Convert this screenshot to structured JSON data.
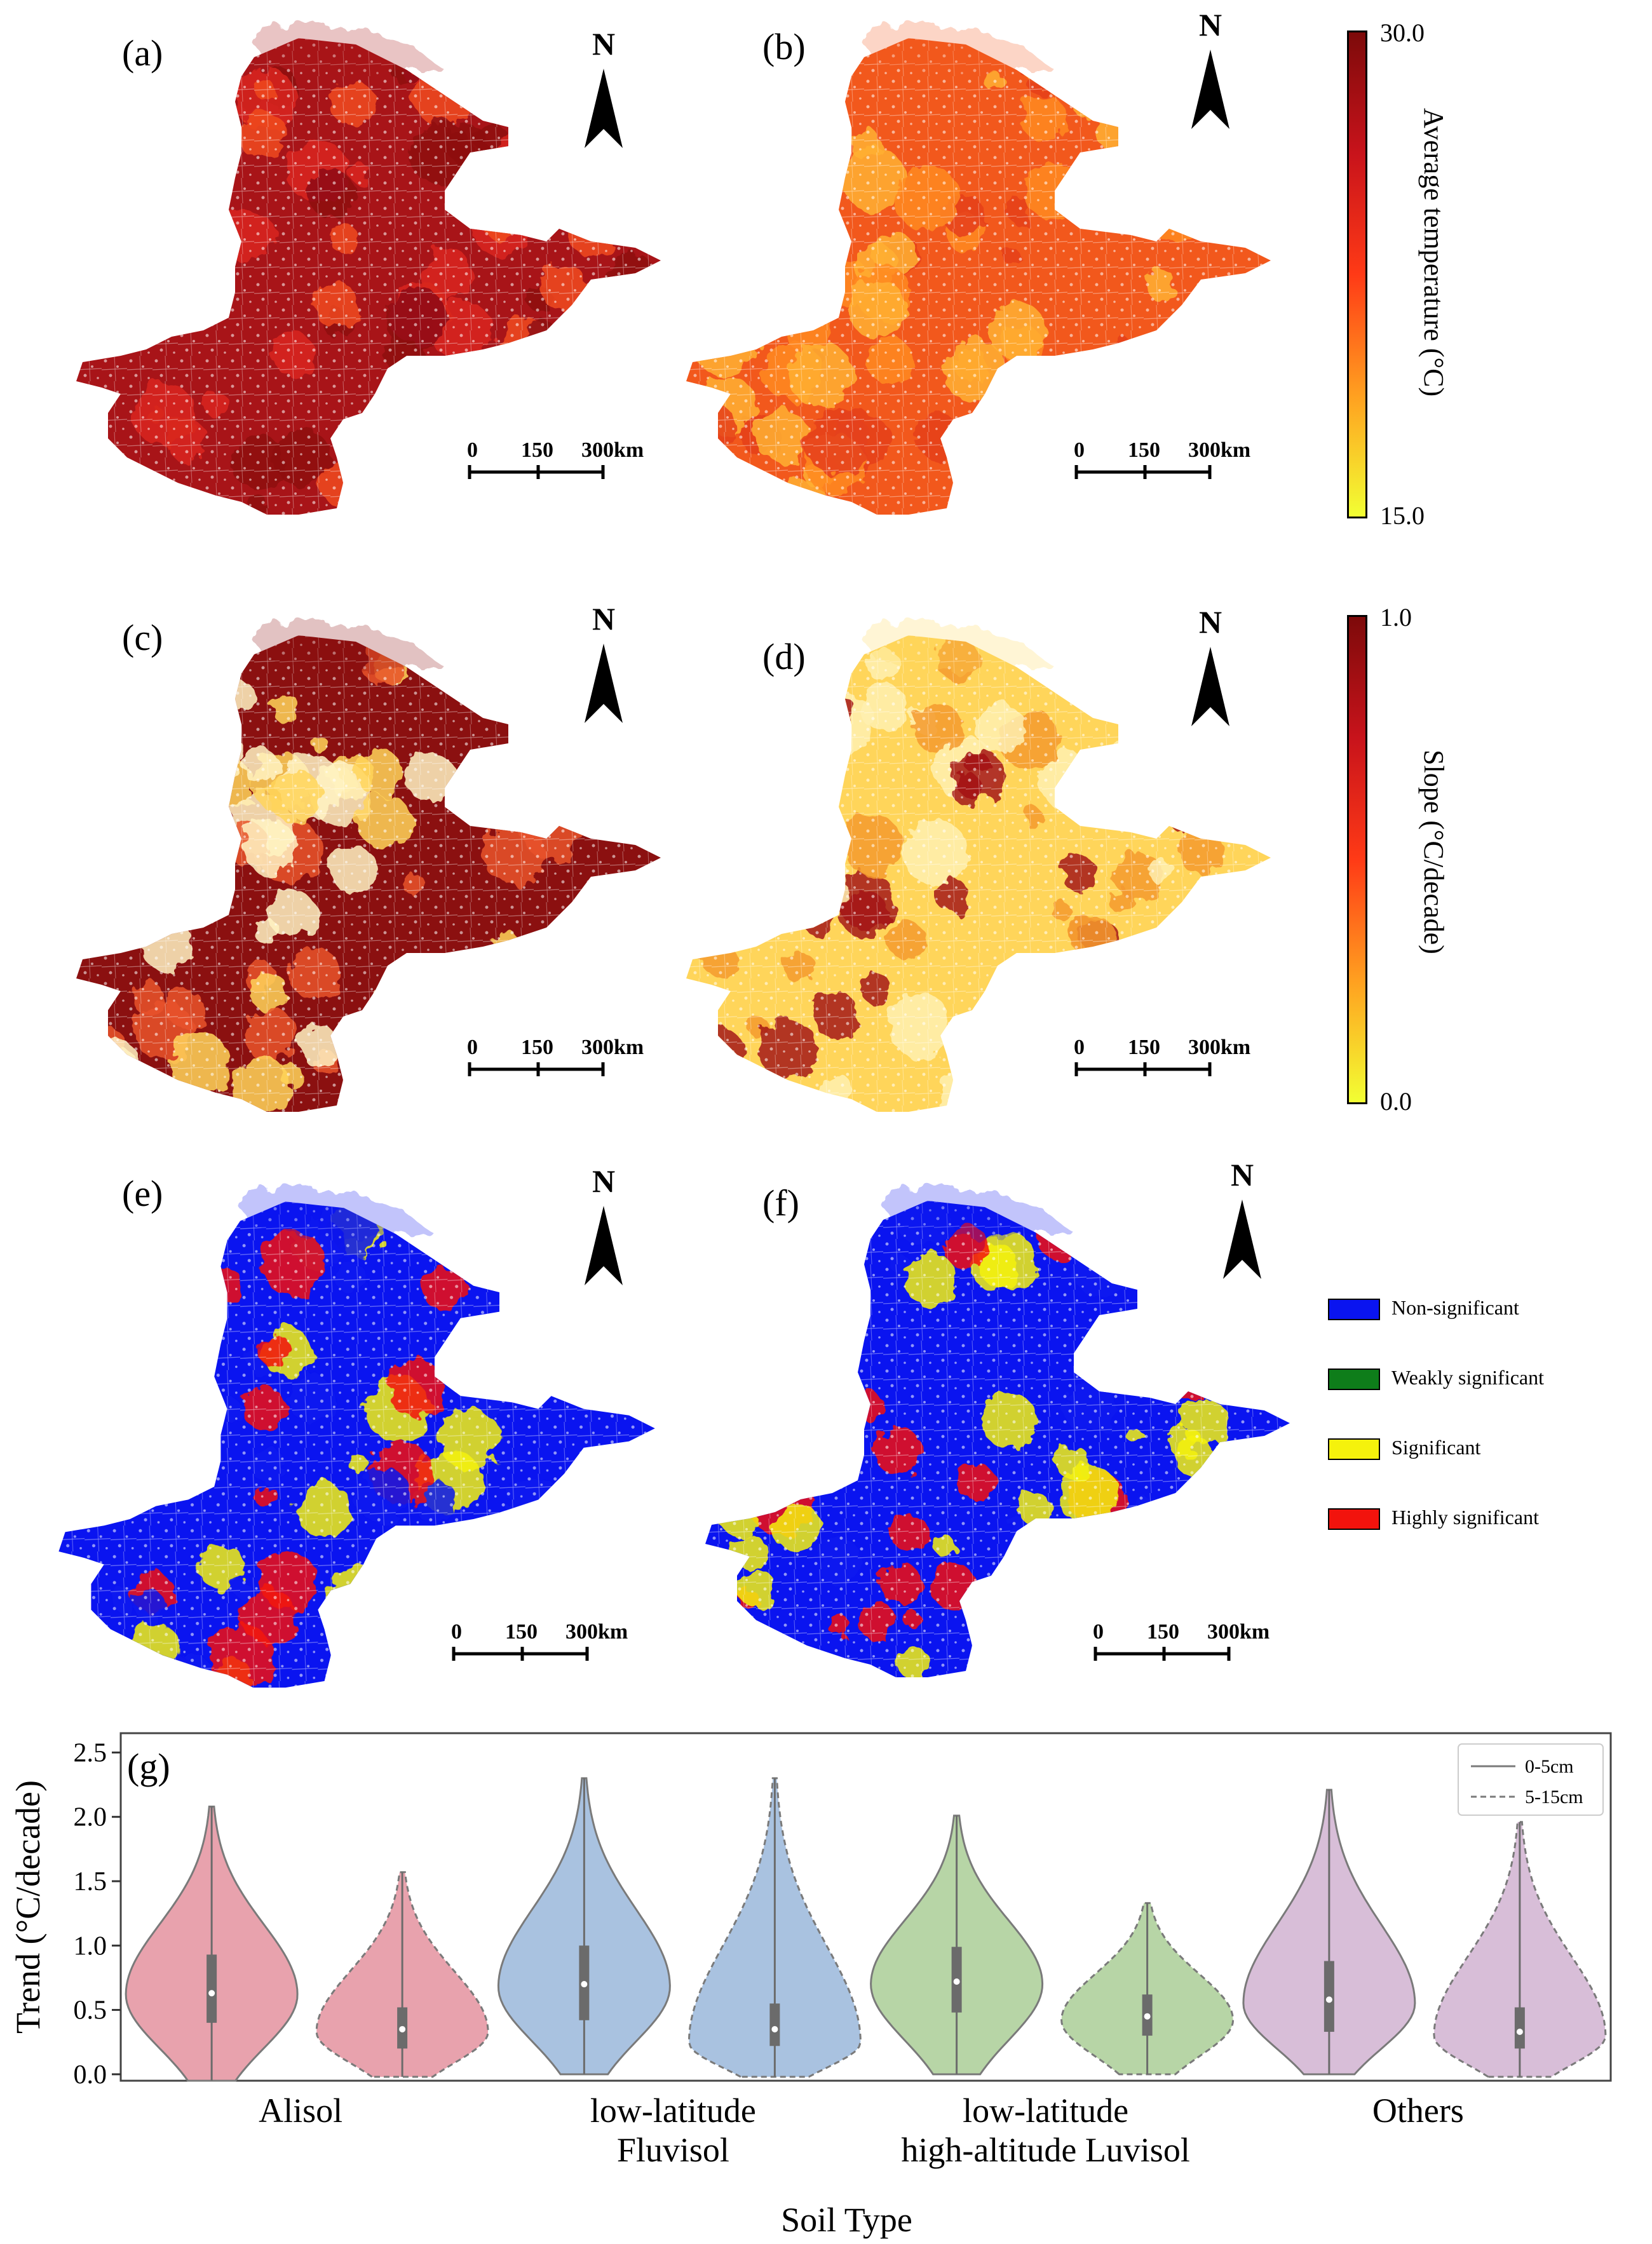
{
  "panels": {
    "a": "(a)",
    "b": "(b)",
    "c": "(c)",
    "d": "(d)",
    "e": "(e)",
    "f": "(f)",
    "g": "(g)",
    "north": "N",
    "scale": [
      "0",
      "150",
      "300km"
    ]
  },
  "colorbars": {
    "temperature": {
      "title": "Average temperature (°C)",
      "max": "30.0",
      "min": "15.0",
      "colors": [
        "#f2ff33",
        "#ffa020",
        "#ff3a16",
        "#c8131b",
        "#7d0a0a"
      ]
    },
    "slope": {
      "title": "Slope (°C/decade)",
      "max": "1.0",
      "min": "0.0",
      "colors": [
        "#f2ff33",
        "#ffa020",
        "#ff3a16",
        "#c8131b",
        "#7d0a0a"
      ]
    }
  },
  "significance_legend": [
    {
      "label": "Non-significant",
      "color": "#0a14f0"
    },
    {
      "label": "Weakly significant",
      "color": "#0e7d1a"
    },
    {
      "label": "Significant",
      "color": "#f5f20c"
    },
    {
      "label": "Highly significant",
      "color": "#f2130d"
    }
  ],
  "map_colors": {
    "a": [
      "#a81418",
      "#d9261c",
      "#f04a1f",
      "#8e0e12"
    ],
    "b": [
      "#f2581c",
      "#ff8a22",
      "#ffb033",
      "#e5401b"
    ],
    "c": [
      "#8b1010",
      "#e8532a",
      "#ffd55a",
      "#fff3c2"
    ],
    "d": [
      "#ffd55a",
      "#fff0b0",
      "#f49a2e",
      "#a51515"
    ],
    "e": [
      "#0a14f0",
      "#0a14f0",
      "#f5f20c",
      "#f2130d"
    ],
    "f": [
      "#0a14f0",
      "#0a14f0",
      "#f5f20c",
      "#f2130d"
    ]
  },
  "chart_data": {
    "type": "violin",
    "title": "",
    "xlabel": "Soil Type",
    "ylabel": "Trend (°C/decade)",
    "ylim": [
      -0.05,
      2.65
    ],
    "yticks": [
      "0.0",
      "0.5",
      "1.0",
      "1.5",
      "2.0",
      "2.5"
    ],
    "categories": [
      {
        "lines": [
          "Alisol"
        ]
      },
      {
        "lines": [
          "low-latitude",
          "Fluvisol"
        ]
      },
      {
        "lines": [
          "low-latitude",
          "high-altitude Luvisol"
        ]
      },
      {
        "lines": [
          "Others"
        ]
      }
    ],
    "category_colors": [
      "#e8a2ad",
      "#a9c2e0",
      "#b7d5a6",
      "#d8bed8"
    ],
    "legend": [
      {
        "label": "0-5cm",
        "dash": "solid"
      },
      {
        "label": "5-15cm",
        "dash": "dashed"
      }
    ],
    "series": [
      {
        "name": "0-5cm",
        "violins": [
          {
            "min": -0.05,
            "max": 2.08,
            "q1": 0.4,
            "median": 0.63,
            "q3": 0.93,
            "mode": 0.62
          },
          {
            "min": 0.0,
            "max": 2.3,
            "q1": 0.42,
            "median": 0.7,
            "q3": 1.0,
            "mode": 0.68
          },
          {
            "min": 0.0,
            "max": 2.01,
            "q1": 0.48,
            "median": 0.72,
            "q3": 0.99,
            "mode": 0.7
          },
          {
            "min": 0.0,
            "max": 2.21,
            "q1": 0.33,
            "median": 0.58,
            "q3": 0.88,
            "mode": 0.55
          }
        ]
      },
      {
        "name": "5-15cm",
        "violins": [
          {
            "min": -0.02,
            "max": 1.57,
            "q1": 0.2,
            "median": 0.35,
            "q3": 0.52,
            "mode": 0.33
          },
          {
            "min": -0.02,
            "max": 2.3,
            "q1": 0.22,
            "median": 0.35,
            "q3": 0.55,
            "mode": 0.25
          },
          {
            "min": 0.0,
            "max": 1.33,
            "q1": 0.3,
            "median": 0.45,
            "q3": 0.62,
            "mode": 0.42
          },
          {
            "min": -0.02,
            "max": 1.96,
            "q1": 0.2,
            "median": 0.33,
            "q3": 0.52,
            "mode": 0.3
          }
        ]
      }
    ]
  }
}
